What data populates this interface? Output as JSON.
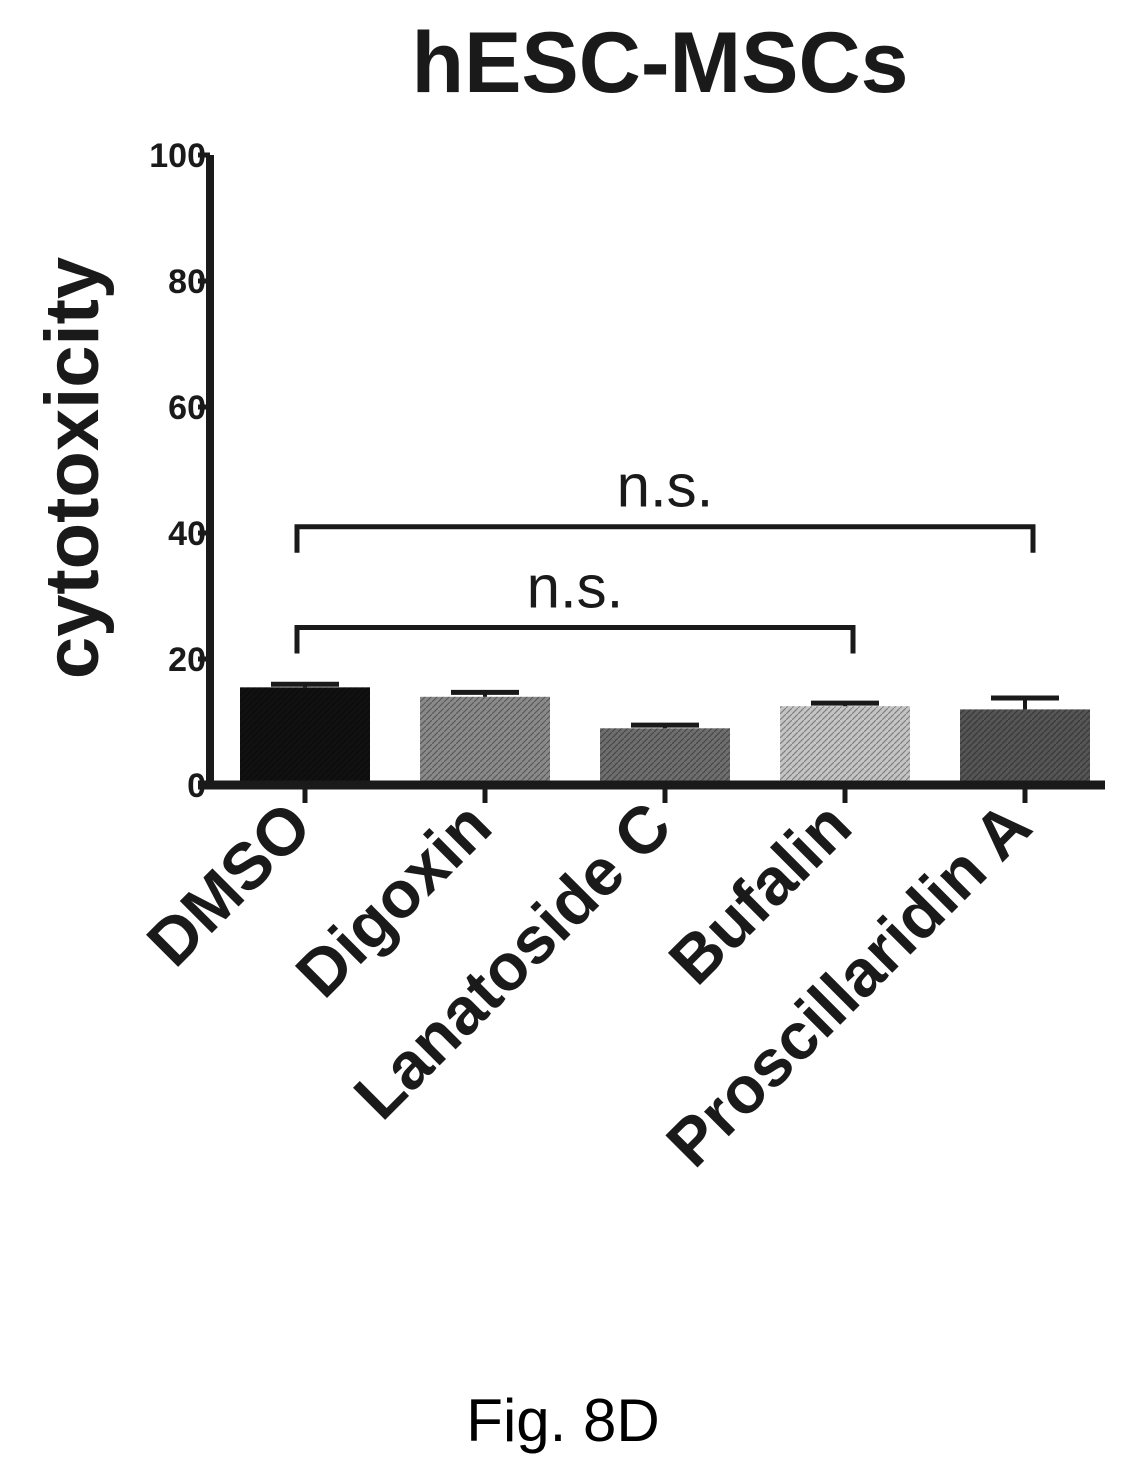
{
  "caption": "Fig. 8D",
  "chart_data": {
    "type": "bar",
    "title": "hESC-MSCs",
    "xlabel": "",
    "ylabel": "cytotoxicity",
    "ylim": [
      0,
      100
    ],
    "yticks": [
      0,
      20,
      40,
      60,
      80,
      100
    ],
    "ytick_labels": [
      "0",
      "20",
      "40",
      "60",
      "80",
      "100"
    ],
    "categories": [
      "DMSO",
      "Digoxin",
      "Lanatoside C",
      "Bufalin",
      "Proscillaridin A"
    ],
    "values": [
      15.5,
      14,
      9,
      12.5,
      12
    ],
    "errors": [
      0.5,
      0.7,
      0.5,
      0.5,
      1.8
    ],
    "colors": [
      "#111111",
      "#8a8a8a",
      "#6e6e6e",
      "#c4c4c4",
      "#555555"
    ],
    "grid": false,
    "annotations": [
      {
        "label": "n.s.",
        "from": "DMSO",
        "to": "Bufalin",
        "y": 25
      },
      {
        "label": "n.s.",
        "from": "DMSO",
        "to": "Proscillaridin A",
        "y": 41
      }
    ]
  }
}
